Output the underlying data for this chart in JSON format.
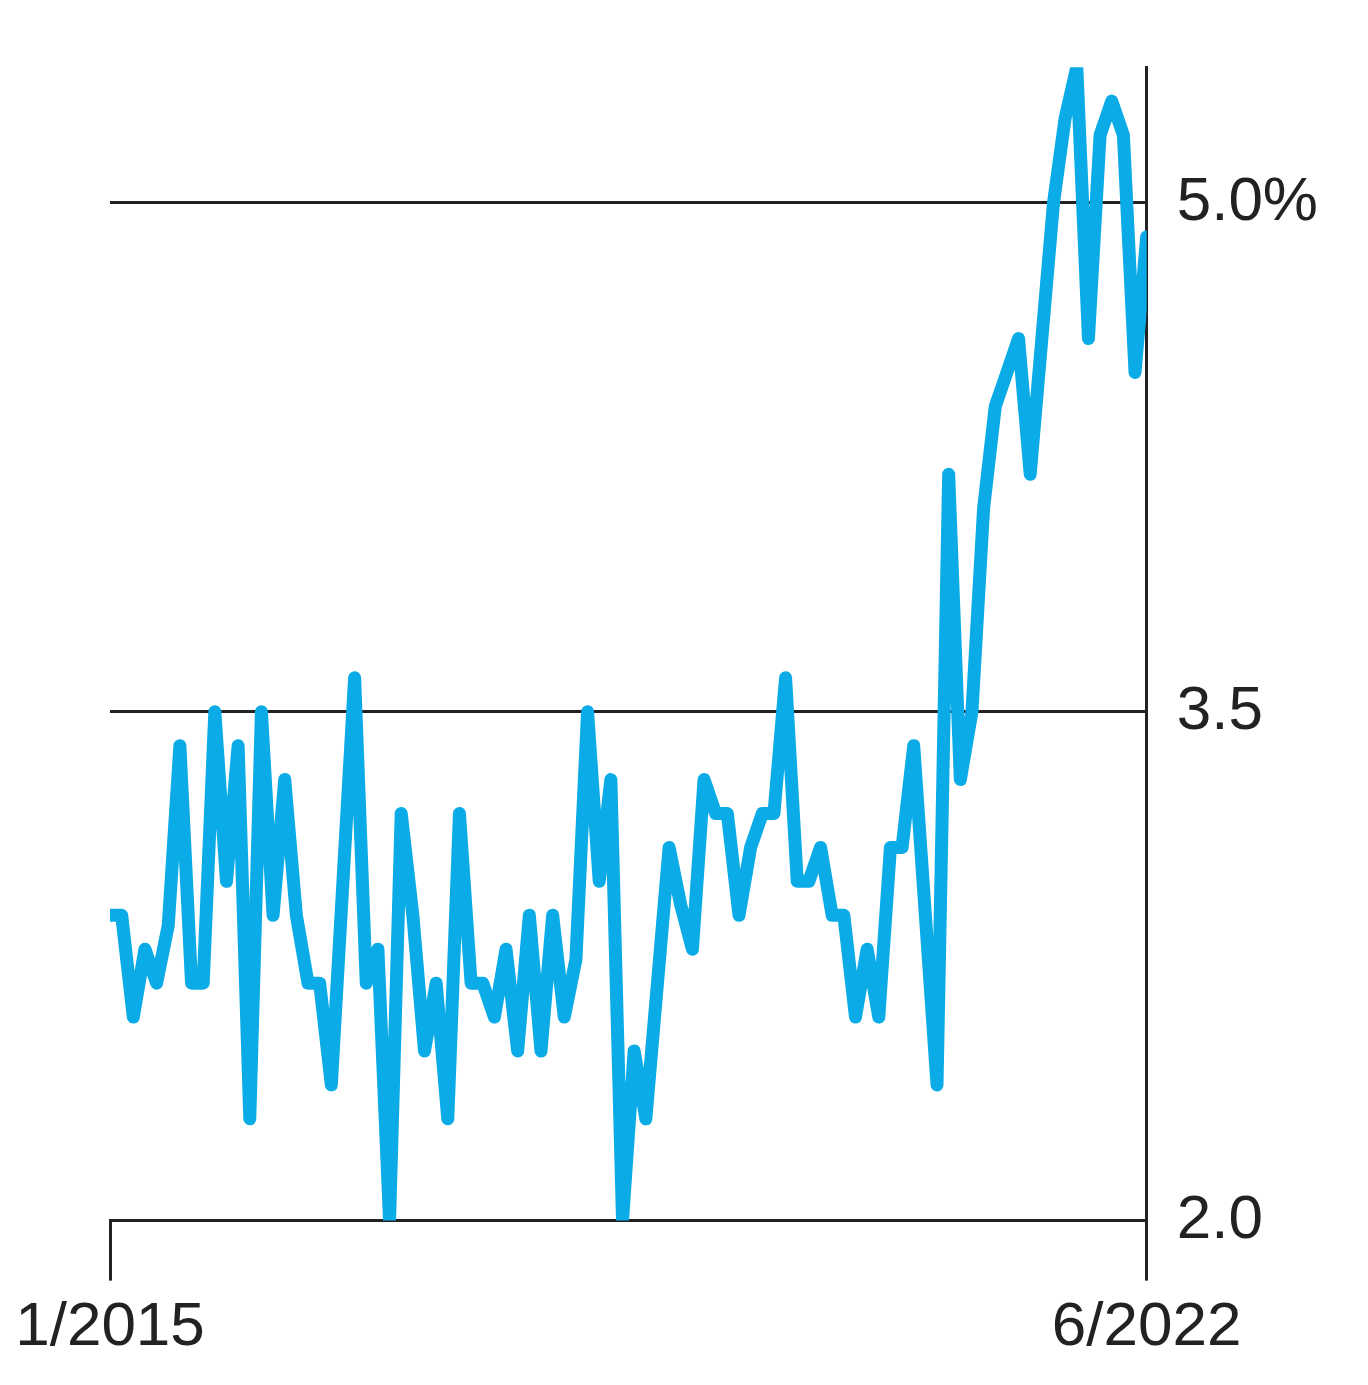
{
  "chart_data": {
    "type": "line",
    "x": [
      "2015-01",
      "2015-02",
      "2015-03",
      "2015-04",
      "2015-05",
      "2015-06",
      "2015-07",
      "2015-08",
      "2015-09",
      "2015-10",
      "2015-11",
      "2015-12",
      "2016-01",
      "2016-02",
      "2016-03",
      "2016-04",
      "2016-05",
      "2016-06",
      "2016-07",
      "2016-08",
      "2016-09",
      "2016-10",
      "2016-11",
      "2016-12",
      "2017-01",
      "2017-02",
      "2017-03",
      "2017-04",
      "2017-05",
      "2017-06",
      "2017-07",
      "2017-08",
      "2017-09",
      "2017-10",
      "2017-11",
      "2017-12",
      "2018-01",
      "2018-02",
      "2018-03",
      "2018-04",
      "2018-05",
      "2018-06",
      "2018-07",
      "2018-08",
      "2018-09",
      "2018-10",
      "2018-11",
      "2018-12",
      "2019-01",
      "2019-02",
      "2019-03",
      "2019-04",
      "2019-05",
      "2019-06",
      "2019-07",
      "2019-08",
      "2019-09",
      "2019-10",
      "2019-11",
      "2019-12",
      "2020-01",
      "2020-02",
      "2020-03",
      "2020-04",
      "2020-05",
      "2020-06",
      "2020-07",
      "2020-08",
      "2020-09",
      "2020-10",
      "2020-11",
      "2020-12",
      "2021-01",
      "2021-02",
      "2021-03",
      "2021-04",
      "2021-05",
      "2021-06",
      "2021-07",
      "2021-08",
      "2021-09",
      "2021-10",
      "2021-11",
      "2021-12",
      "2022-01",
      "2022-02",
      "2022-03",
      "2022-04",
      "2022-05",
      "2022-06"
    ],
    "series": [
      {
        "color": "#0aabe6",
        "values": [
          2.9,
          2.9,
          2.6,
          2.8,
          2.7,
          2.87,
          3.4,
          2.7,
          2.7,
          3.5,
          3.0,
          3.4,
          2.3,
          3.5,
          2.9,
          3.3,
          2.9,
          2.7,
          2.7,
          2.4,
          3.0,
          3.6,
          2.7,
          2.8,
          2.0,
          3.2,
          2.9,
          2.5,
          2.7,
          2.3,
          3.2,
          2.7,
          2.7,
          2.6,
          2.8,
          2.5,
          2.9,
          2.5,
          2.9,
          2.6,
          2.77,
          3.5,
          3.0,
          3.3,
          2.0,
          2.5,
          2.3,
          2.7,
          3.1,
          2.93,
          2.8,
          3.3,
          3.2,
          3.2,
          2.9,
          3.1,
          3.2,
          3.2,
          3.6,
          3.0,
          3.0,
          3.1,
          2.9,
          2.9,
          2.6,
          2.8,
          2.6,
          3.1,
          3.1,
          3.4,
          2.9,
          2.4,
          4.2,
          3.3,
          3.5,
          4.1,
          4.4,
          4.5,
          4.6,
          4.2,
          4.6,
          5.0,
          5.25,
          5.4,
          4.6,
          5.2,
          5.3,
          5.2,
          4.5,
          4.9
        ]
      }
    ],
    "xlim": [
      "2015-01",
      "2022-06"
    ],
    "xticks": [
      {
        "value": "2015-01",
        "label": "1/2015"
      },
      {
        "value": "2022-06",
        "label": "6/2022"
      }
    ],
    "ylim": [
      2.0,
      5.4
    ],
    "yticks": [
      {
        "value": 2.0,
        "label": "2.0"
      },
      {
        "value": 3.5,
        "label": "3.5"
      },
      {
        "value": 5.0,
        "label": "5.0%"
      }
    ],
    "grid": "y",
    "legend": false,
    "marker": "none",
    "line_style": "solid"
  }
}
